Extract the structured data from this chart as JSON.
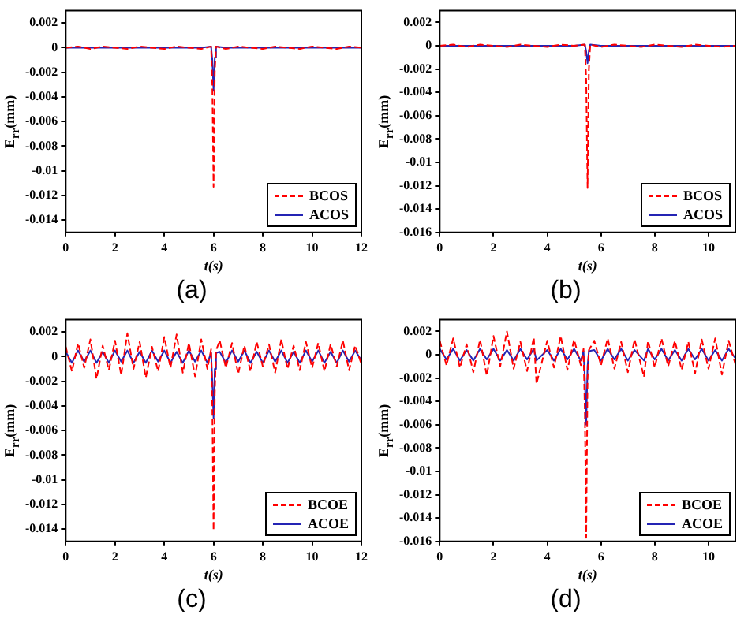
{
  "chart_data": [
    {
      "type": "line",
      "title": "(a)",
      "xlabel": "t(s)",
      "ylabel": "E$_{rr}$(mm)",
      "xlim": [
        0,
        12
      ],
      "xticks": [
        0,
        2,
        4,
        6,
        8,
        10,
        12
      ],
      "ylim": [
        -0.015,
        0.003
      ],
      "yticks": [
        0.002,
        0,
        -0.002,
        -0.004,
        -0.006,
        -0.008,
        -0.01,
        -0.012,
        -0.014
      ],
      "legend": "bottom right",
      "marker": "none",
      "series": [
        {
          "name": "BCOS",
          "color": "#ff0000",
          "line_style": "dashed",
          "x": [
            0,
            0.5,
            1,
            1.5,
            2,
            2.5,
            3,
            3.5,
            4,
            4.5,
            5,
            5.5,
            5.9,
            5.95,
            6,
            6.05,
            6.1,
            6.5,
            7,
            7.5,
            8,
            8.5,
            9,
            9.5,
            10,
            10.5,
            11,
            11.5,
            12
          ],
          "values": [
            0,
            0.0001,
            -0.0001,
            0.0001,
            0,
            -0.0001,
            0.0001,
            0,
            -0.0001,
            0.0001,
            0,
            -0.0001,
            0.0001,
            -0.003,
            -0.0113,
            -0.002,
            0.0001,
            -0.0001,
            0.0001,
            0,
            -0.0001,
            0.0001,
            0,
            -0.0001,
            0.0001,
            0,
            -0.0001,
            0.0001,
            0
          ]
        },
        {
          "name": "ACOS",
          "color": "#2424b4",
          "line_style": "solid",
          "x": [
            0,
            0.5,
            1,
            1.5,
            2,
            2.5,
            3,
            3.5,
            4,
            4.5,
            5,
            5.5,
            5.9,
            5.95,
            6,
            6.05,
            6.1,
            6.5,
            7,
            7.5,
            8,
            8.5,
            9,
            9.5,
            10,
            10.5,
            11,
            11.5,
            12
          ],
          "values": [
            0,
            0,
            0,
            0,
            0,
            0,
            0,
            0,
            0,
            0,
            0,
            0,
            0.0001,
            -0.001,
            -0.0035,
            -0.0008,
            0.0001,
            0,
            0,
            0,
            0,
            0,
            0,
            0,
            0,
            0,
            0,
            0,
            0
          ]
        }
      ]
    },
    {
      "type": "line",
      "title": "(b)",
      "xlabel": "t(s)",
      "ylabel": "E$_{rr}$(mm)",
      "xlim": [
        0,
        11
      ],
      "xticks": [
        0,
        2,
        4,
        6,
        8,
        10
      ],
      "ylim": [
        -0.016,
        0.003
      ],
      "yticks": [
        0.002,
        0,
        -0.002,
        -0.004,
        -0.006,
        -0.008,
        -0.01,
        -0.012,
        -0.014,
        -0.016
      ],
      "legend": "bottom right",
      "marker": "none",
      "series": [
        {
          "name": "BCOS",
          "color": "#ff0000",
          "line_style": "dashed",
          "x": [
            0,
            0.5,
            1,
            1.5,
            2,
            2.5,
            3,
            3.5,
            4,
            4.5,
            5,
            5.4,
            5.45,
            5.5,
            5.55,
            5.6,
            6,
            6.5,
            7,
            7.5,
            8,
            8.5,
            9,
            9.5,
            10,
            10.5,
            11
          ],
          "values": [
            0,
            0.0001,
            -0.0001,
            0.0001,
            0,
            -0.0001,
            0.0001,
            0,
            -0.0001,
            0.0001,
            0,
            0.0001,
            -0.003,
            -0.0122,
            -0.002,
            0.0001,
            -0.0001,
            0.0001,
            0,
            -0.0001,
            0.0001,
            0,
            -0.0001,
            0.0001,
            0,
            -0.0001,
            0
          ]
        },
        {
          "name": "ACOS",
          "color": "#2424b4",
          "line_style": "solid",
          "x": [
            0,
            0.5,
            1,
            1.5,
            2,
            2.5,
            3,
            3.5,
            4,
            4.5,
            5,
            5.4,
            5.45,
            5.5,
            5.55,
            5.6,
            6,
            6.5,
            7,
            7.5,
            8,
            8.5,
            9,
            9.5,
            10,
            10.5,
            11
          ],
          "values": [
            0,
            0,
            0,
            0,
            0,
            0,
            0,
            0,
            0,
            0,
            0,
            0.0001,
            -0.0005,
            -0.0015,
            -0.0004,
            0.0001,
            0,
            0,
            0,
            0,
            0,
            0,
            0,
            0,
            0,
            0,
            0
          ]
        }
      ]
    },
    {
      "type": "line",
      "title": "(c)",
      "xlabel": "t(s)",
      "ylabel": "E$_{rr}$(mm)",
      "xlim": [
        0,
        12
      ],
      "xticks": [
        0,
        2,
        4,
        6,
        8,
        10,
        12
      ],
      "ylim": [
        -0.015,
        0.003
      ],
      "yticks": [
        0.002,
        0,
        -0.002,
        -0.004,
        -0.006,
        -0.008,
        -0.01,
        -0.012,
        -0.014
      ],
      "legend": "bottom right",
      "marker": "none",
      "series": [
        {
          "name": "BCOE",
          "color": "#ff0000",
          "line_style": "dashed",
          "x": [
            0,
            0.25,
            0.5,
            0.75,
            1,
            1.25,
            1.5,
            1.75,
            2,
            2.25,
            2.5,
            2.75,
            3,
            3.25,
            3.5,
            3.75,
            4,
            4.25,
            4.5,
            4.75,
            5,
            5.25,
            5.5,
            5.75,
            5.9,
            5.95,
            6,
            6.05,
            6.1,
            6.25,
            6.5,
            6.75,
            7,
            7.25,
            7.5,
            7.75,
            8,
            8.25,
            8.5,
            8.75,
            9,
            9.25,
            9.5,
            9.75,
            10,
            10.25,
            10.5,
            10.75,
            11,
            11.25,
            11.5,
            11.75,
            12
          ],
          "values": [
            0.0008,
            -0.0012,
            0.0011,
            -0.0009,
            0.0014,
            -0.0018,
            0.0009,
            -0.0011,
            0.0013,
            -0.0015,
            0.0019,
            -0.001,
            0.0012,
            -0.0017,
            0.0008,
            -0.0012,
            0.0016,
            -0.0009,
            0.0018,
            -0.0013,
            0.0011,
            -0.0016,
            0.0014,
            -0.001,
            0.0006,
            -0.004,
            -0.0141,
            -0.003,
            0.0005,
            0.0013,
            -0.0009,
            0.0011,
            -0.0014,
            0.0009,
            -0.0012,
            0.0012,
            -0.0008,
            0.001,
            -0.0013,
            0.0014,
            -0.001,
            0.0009,
            -0.0011,
            0.0012,
            -0.0009,
            0.0011,
            -0.0012,
            0.001,
            -0.0008,
            0.0013,
            -0.0011,
            0.0009,
            -0.0006
          ]
        },
        {
          "name": "ACOE",
          "color": "#2424b4",
          "line_style": "solid",
          "x": [
            0,
            0.25,
            0.5,
            0.75,
            1,
            1.25,
            1.5,
            1.75,
            2,
            2.25,
            2.5,
            2.75,
            3,
            3.25,
            3.5,
            3.75,
            4,
            4.25,
            4.5,
            4.75,
            5,
            5.25,
            5.5,
            5.75,
            5.9,
            5.95,
            6,
            6.05,
            6.1,
            6.25,
            6.5,
            6.75,
            7,
            7.25,
            7.5,
            7.75,
            8,
            8.25,
            8.5,
            8.75,
            9,
            9.25,
            9.5,
            9.75,
            10,
            10.25,
            10.5,
            10.75,
            11,
            11.25,
            11.5,
            11.75,
            12
          ],
          "values": [
            0.0004,
            -0.0005,
            0.0005,
            -0.0004,
            0.0005,
            -0.0005,
            0.0004,
            -0.0005,
            0.0005,
            -0.0004,
            0.0005,
            -0.0005,
            0.0004,
            -0.0005,
            0.0005,
            -0.0004,
            0.0005,
            -0.0005,
            0.0004,
            -0.0005,
            0.0005,
            -0.0004,
            0.0005,
            -0.0005,
            0.0003,
            -0.002,
            -0.005,
            -0.001,
            0.0003,
            0.0004,
            -0.0005,
            0.0005,
            -0.0004,
            0.0005,
            -0.0005,
            0.0004,
            -0.0005,
            0.0005,
            -0.0004,
            0.0005,
            -0.0005,
            0.0004,
            -0.0005,
            0.0005,
            -0.0004,
            0.0005,
            -0.0005,
            0.0004,
            -0.0005,
            0.0005,
            -0.0004,
            0.0005,
            -0.0003
          ]
        }
      ]
    },
    {
      "type": "line",
      "title": "(d)",
      "xlabel": "t(s)",
      "ylabel": "E$_{rr}$(mm)",
      "xlim": [
        0,
        11
      ],
      "xticks": [
        0,
        2,
        4,
        6,
        8,
        10
      ],
      "ylim": [
        -0.016,
        0.003
      ],
      "yticks": [
        0.002,
        0,
        -0.002,
        -0.004,
        -0.006,
        -0.008,
        -0.01,
        -0.012,
        -0.014,
        -0.016
      ],
      "legend": "bottom right",
      "marker": "none",
      "series": [
        {
          "name": "BCOE",
          "color": "#ff0000",
          "line_style": "dashed",
          "x": [
            0,
            0.25,
            0.5,
            0.75,
            1,
            1.25,
            1.5,
            1.75,
            2,
            2.25,
            2.5,
            2.75,
            3,
            3.25,
            3.5,
            3.6,
            4,
            4.25,
            4.5,
            4.75,
            5,
            5.25,
            5.35,
            5.4,
            5.45,
            5.5,
            5.55,
            5.75,
            6,
            6.25,
            6.5,
            6.75,
            7,
            7.25,
            7.6,
            7.75,
            8,
            8.25,
            8.5,
            8.75,
            9,
            9.25,
            9.5,
            9.75,
            10,
            10.25,
            10.5,
            10.75,
            11
          ],
          "values": [
            0.0012,
            -0.0009,
            0.0014,
            -0.0011,
            0.0009,
            -0.0015,
            0.0013,
            -0.0018,
            0.0016,
            -0.001,
            0.002,
            -0.0012,
            0.0011,
            -0.0014,
            0.0015,
            -0.0025,
            0.0012,
            -0.0011,
            0.0016,
            -0.0013,
            0.0013,
            -0.0009,
            0.0005,
            -0.005,
            -0.0157,
            -0.002,
            0.0004,
            0.0012,
            -0.0009,
            0.0014,
            -0.0012,
            0.0011,
            -0.0015,
            0.0013,
            -0.0019,
            0.0012,
            -0.0011,
            0.0014,
            -0.001,
            0.0012,
            -0.0013,
            0.0011,
            -0.0016,
            0.0013,
            -0.0012,
            0.0014,
            -0.0017,
            0.0012,
            -0.0008
          ]
        },
        {
          "name": "ACOE",
          "color": "#2424b4",
          "line_style": "solid",
          "x": [
            0,
            0.25,
            0.5,
            0.75,
            1,
            1.25,
            1.5,
            1.75,
            2,
            2.25,
            2.5,
            2.75,
            3,
            3.25,
            3.5,
            3.6,
            4,
            4.25,
            4.5,
            4.75,
            5,
            5.25,
            5.35,
            5.4,
            5.45,
            5.5,
            5.55,
            5.75,
            6,
            6.25,
            6.5,
            6.75,
            7,
            7.25,
            7.6,
            7.75,
            8,
            8.25,
            8.5,
            8.75,
            9,
            9.25,
            9.5,
            9.75,
            10,
            10.25,
            10.5,
            10.75,
            11
          ],
          "values": [
            0.0005,
            -0.0004,
            0.0005,
            -0.0005,
            0.0004,
            -0.0005,
            0.0005,
            -0.0004,
            0.0005,
            -0.0005,
            0.0004,
            -0.0005,
            0.0005,
            -0.0004,
            0.0005,
            -0.0005,
            0.0004,
            -0.0005,
            0.0005,
            -0.0004,
            0.0005,
            -0.0005,
            0.0003,
            -0.002,
            -0.006,
            -0.001,
            0.0003,
            0.0004,
            -0.0005,
            0.0005,
            -0.0004,
            0.0005,
            -0.0005,
            0.0004,
            -0.0005,
            0.0005,
            -0.0004,
            0.0005,
            -0.0005,
            0.0004,
            -0.0005,
            0.0005,
            -0.0004,
            0.0005,
            -0.0005,
            0.0004,
            -0.0005,
            0.0005,
            -0.0003
          ]
        }
      ]
    }
  ]
}
